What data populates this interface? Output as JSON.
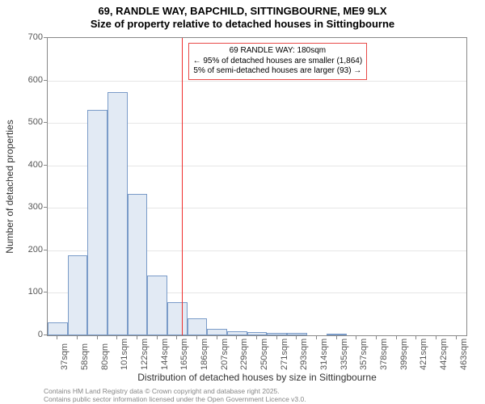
{
  "chart": {
    "type": "histogram",
    "title_main": "69, RANDLE WAY, BAPCHILD, SITTINGBOURNE, ME9 9LX",
    "title_sub": "Size of property relative to detached houses in Sittingbourne",
    "y_axis_label": "Number of detached properties",
    "x_axis_label": "Distribution of detached houses by size in Sittingbourne",
    "ylim": [
      0,
      700
    ],
    "ytick_step": 100,
    "y_ticks": [
      0,
      100,
      200,
      300,
      400,
      500,
      600,
      700
    ],
    "x_tick_labels": [
      "37sqm",
      "58sqm",
      "80sqm",
      "101sqm",
      "122sqm",
      "144sqm",
      "165sqm",
      "186sqm",
      "207sqm",
      "229sqm",
      "250sqm",
      "271sqm",
      "293sqm",
      "314sqm",
      "335sqm",
      "357sqm",
      "378sqm",
      "399sqm",
      "421sqm",
      "442sqm",
      "463sqm"
    ],
    "bar_start": 37,
    "bar_width_units": 21.3,
    "bars": [
      30,
      188,
      530,
      572,
      332,
      140,
      78,
      40,
      15,
      10,
      8,
      6,
      5,
      0,
      4,
      0,
      0,
      0,
      0,
      0,
      0
    ],
    "bar_fill": "#e2eaf4",
    "bar_border": "#7a9bc8",
    "plot_border": "#888888",
    "grid_color": "#e6e6e6",
    "marker_value": 180,
    "marker_color": "#ef2e2c",
    "annotation_border": "#e84a47",
    "annotation_line1": "69 RANDLE WAY: 180sqm",
    "annotation_line2": "← 95% of detached houses are smaller (1,864)",
    "annotation_line3": "5% of semi-detached houses are larger (93) →",
    "annotation_fontsize": 10,
    "label_fontsize": 12,
    "tick_fontsize": 11,
    "title_fontsize": 13,
    "font_family": "Arial"
  },
  "credits": {
    "line1": "Contains HM Land Registry data © Crown copyright and database right 2025.",
    "line2": "Contains public sector information licensed under the Open Government Licence v3.0."
  }
}
